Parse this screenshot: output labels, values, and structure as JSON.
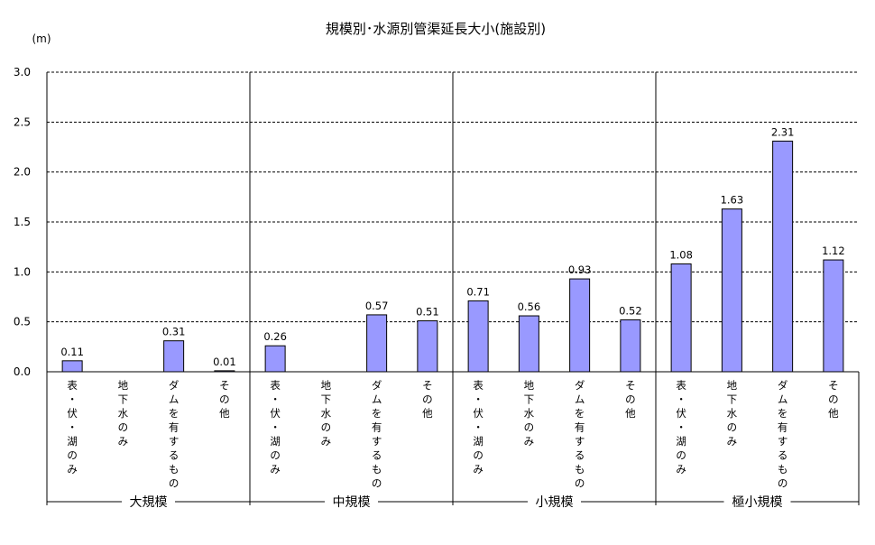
{
  "chart_data": {
    "type": "bar",
    "title": "規模別･水源別管渠延長大小(施設別)",
    "unit_label": "(m)",
    "ylim": [
      0,
      3.0
    ],
    "yticks": [
      "0.0",
      "0.5",
      "1.0",
      "1.5",
      "2.0",
      "2.5",
      "3.0"
    ],
    "grid": "horizontal dashed",
    "bar_color": "#9999ff",
    "groups": [
      {
        "name": "大規模",
        "categories": [
          "表・伏・湖のみ",
          "地下水のみ",
          "ダムを有するもの",
          "その他"
        ],
        "values": [
          0.11,
          null,
          0.31,
          0.01
        ],
        "labels": [
          "0.11",
          "",
          "0.31",
          "0.01"
        ]
      },
      {
        "name": "中規模",
        "categories": [
          "表・伏・湖のみ",
          "地下水のみ",
          "ダムを有するもの",
          "その他"
        ],
        "values": [
          0.26,
          null,
          0.57,
          0.51
        ],
        "labels": [
          "0.26",
          "",
          "0.57",
          "0.51"
        ]
      },
      {
        "name": "小規模",
        "categories": [
          "表・伏・湖のみ",
          "地下水のみ",
          "ダムを有するもの",
          "その他"
        ],
        "values": [
          0.71,
          0.56,
          0.93,
          0.52
        ],
        "labels": [
          "0.71",
          "0.56",
          "0.93",
          "0.52"
        ]
      },
      {
        "name": "極小規模",
        "categories": [
          "表・伏・湖のみ",
          "地下水のみ",
          "ダムを有するもの",
          "その他"
        ],
        "values": [
          1.08,
          1.63,
          2.31,
          1.12
        ],
        "labels": [
          "1.08",
          "1.63",
          "2.31",
          "1.12"
        ]
      }
    ]
  }
}
